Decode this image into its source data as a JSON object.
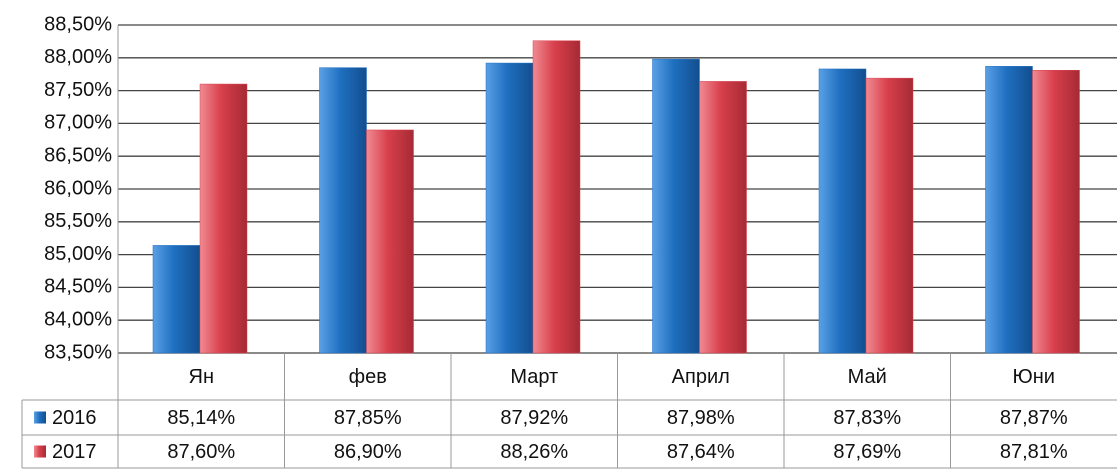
{
  "chart_data": {
    "type": "bar",
    "categories": [
      "Ян",
      "фев",
      "Март",
      "Април",
      "Май",
      "Юни"
    ],
    "series": [
      {
        "name": "2016",
        "color": "#1f6fc0",
        "values": [
          85.14,
          87.85,
          87.92,
          87.98,
          87.83,
          87.87
        ],
        "value_labels": [
          "85,14%",
          "87,85%",
          "87,92%",
          "87,98%",
          "87,83%",
          "87,87%"
        ]
      },
      {
        "name": "2017",
        "color": "#d8404c",
        "values": [
          87.6,
          86.9,
          88.26,
          87.64,
          87.69,
          87.81
        ],
        "value_labels": [
          "87,60%",
          "86,90%",
          "88,26%",
          "87,64%",
          "87,69%",
          "87,81%"
        ]
      }
    ],
    "ylim": [
      83.5,
      88.5
    ],
    "yticks": [
      {
        "value": 83.5,
        "label": "83,50%"
      },
      {
        "value": 84,
        "label": "84,00%"
      },
      {
        "value": 84.5,
        "label": "84,50%"
      },
      {
        "value": 85,
        "label": "85,00%"
      },
      {
        "value": 85.5,
        "label": "85,50%"
      },
      {
        "value": 86,
        "label": "86,00%"
      },
      {
        "value": 86.5,
        "label": "86,50%"
      },
      {
        "value": 87,
        "label": "87,00%"
      },
      {
        "value": 87.5,
        "label": "87,50%"
      },
      {
        "value": 88,
        "label": "88,00%"
      },
      {
        "value": 88.5,
        "label": "88,50%"
      }
    ],
    "grid": true
  }
}
